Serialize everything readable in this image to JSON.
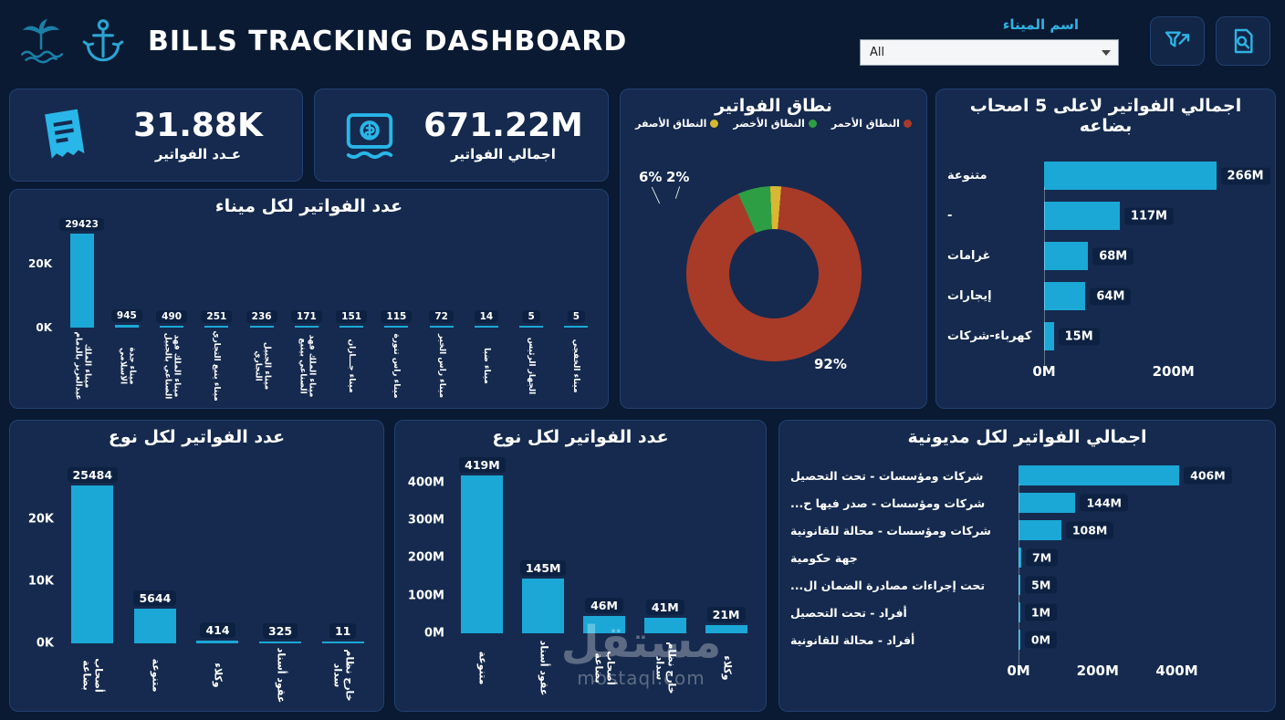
{
  "header": {
    "title": "BILLS TRACKING DASHBOARD",
    "filter_label": "اسم الميناء",
    "filter_value": "All",
    "left_icons": [
      "ports-authority-logo",
      "anchor-logo"
    ],
    "right_icons": [
      "clear-filter-icon",
      "search-document-icon"
    ]
  },
  "kpis": [
    {
      "value": "31.88K",
      "label": "عـدد الفواتير",
      "icon": "receipt-icon"
    },
    {
      "value": "671.22M",
      "label": "اجمالي الفواتير",
      "icon": "invoice-dollar-icon"
    }
  ],
  "colors": {
    "background": "#0a1a33",
    "card": "#152a4e",
    "accent": "#1ba8d6",
    "red": "#a83a28",
    "green": "#2e9e44",
    "yellow": "#d8b832",
    "pill": "#0d2142"
  },
  "watermark": {
    "line1": "مستقل",
    "line2": "mostaql.com"
  },
  "chart_data": [
    {
      "id": "scope-donut",
      "type": "pie",
      "title": "نطاق الفواتير",
      "legend": [
        {
          "label": "النطاق الأحمر",
          "color": "#a83a28"
        },
        {
          "label": "النطاق الأخضر",
          "color": "#2e9e44"
        },
        {
          "label": "النطاق الأصفر",
          "color": "#d8b832"
        }
      ],
      "values": [
        92,
        6,
        2
      ],
      "labels": [
        "92%",
        "6%",
        "2%"
      ]
    },
    {
      "id": "top5",
      "type": "bar-horizontal",
      "title": "اجمالي الفواتير لاعلى 5 اصحاب بضاعه",
      "categories": [
        "متنوعة",
        "-",
        "غرامات",
        "إيجارات",
        "كهرباء-شركات"
      ],
      "values": [
        266,
        117,
        68,
        64,
        15
      ],
      "value_labels": [
        "266M",
        "117M",
        "68M",
        "64M",
        "15M"
      ],
      "x_ticks": [
        {
          "label": "0M",
          "value": 0
        },
        {
          "label": "200M",
          "value": 200
        }
      ],
      "xmax": 340
    },
    {
      "id": "per-port",
      "type": "bar",
      "title": "عدد الفواتير لكل ميناء",
      "categories": [
        "ميناء الملك عبدالعزيز بالدمام",
        "ميناء جدة الاسلامي",
        "ميناء الملك فهد الصناعي بالجبيل",
        "ميناء ينبع التجاري",
        "ميناء الجبيل التجاري",
        "ميناء الملك فهد الصناعي بينبع",
        "ميناء جـــازان",
        "ميناء راس تنورة",
        "ميناء راس الخير",
        "ميناء ضبا",
        "الجهاز الرئيس",
        "ميناء الخفجي"
      ],
      "values": [
        29423,
        945,
        490,
        251,
        236,
        171,
        151,
        115,
        72,
        14,
        5,
        5
      ],
      "y_ticks": [
        {
          "label": "0K",
          "value": 0
        },
        {
          "label": "20K",
          "value": 20000
        }
      ],
      "ymax": 32000
    },
    {
      "id": "type-count",
      "type": "bar",
      "title": "عدد الفواتير لكل نوع",
      "categories": [
        "أصحاب بضاعة",
        "متنوعة",
        "وكلاء",
        "عقود أسناد",
        "خارج نظام سداد"
      ],
      "values": [
        25484,
        5644,
        414,
        325,
        11
      ],
      "y_ticks": [
        {
          "label": "0K",
          "value": 0
        },
        {
          "label": "10K",
          "value": 10000
        },
        {
          "label": "20K",
          "value": 20000
        }
      ],
      "ymax": 28000
    },
    {
      "id": "type-amount",
      "type": "bar",
      "title": "عدد الفواتير لكل نوع",
      "categories": [
        "متنوعة",
        "عقود أسناد",
        "أصحاب بضاعة",
        "خارج نظام سداد",
        "وكلاء"
      ],
      "values": [
        419,
        145,
        46,
        41,
        21
      ],
      "value_labels": [
        "419M",
        "145M",
        "46M",
        "41M",
        "21M"
      ],
      "y_ticks": [
        {
          "label": "0M",
          "value": 0
        },
        {
          "label": "100M",
          "value": 100
        },
        {
          "label": "200M",
          "value": 200
        },
        {
          "label": "300M",
          "value": 300
        },
        {
          "label": "400M",
          "value": 400
        }
      ],
      "ymax": 460
    },
    {
      "id": "per-debt",
      "type": "bar-horizontal",
      "title": "اجمالي الفواتير لكل مديونية",
      "categories": [
        "شركات ومؤسسات - تحت التحصيل",
        "شركات ومؤسسات - صدر فيها ح...",
        "شركات ومؤسسات - محالة للقانونية",
        "جهة حكومية",
        "تحت إجراءات مصادرة الضمان ال...",
        "أفراد - تحت التحصيل",
        "أفراد - محالة للقانونية"
      ],
      "values": [
        406,
        144,
        108,
        7,
        5,
        1,
        0
      ],
      "value_labels": [
        "406M",
        "144M",
        "108M",
        "7M",
        "5M",
        "1M",
        "0M"
      ],
      "x_ticks": [
        {
          "label": "0M",
          "value": 0
        },
        {
          "label": "200M",
          "value": 200
        },
        {
          "label": "400M",
          "value": 400
        }
      ],
      "xmax": 620
    }
  ]
}
